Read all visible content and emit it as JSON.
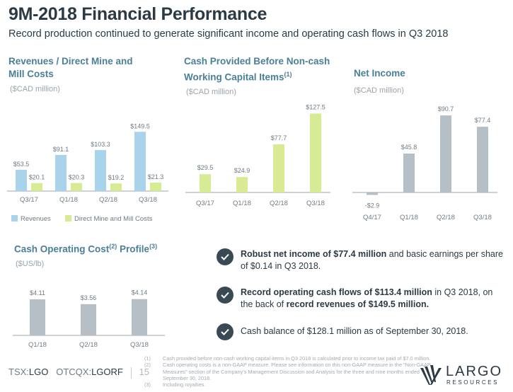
{
  "header": {
    "title": "9M-2018 Financial Performance",
    "subtitle": "Record production continued to generate significant income and operating cash flows in Q3 2018"
  },
  "colors": {
    "revenues": "#a9d3ea",
    "mine_costs": "#d6eb93",
    "cash_before": "#d6eb93",
    "net_income": "#b6bfc5",
    "cash_cost": "#b6bfc5",
    "title_blue": "#4a7f98"
  },
  "chart_data": [
    {
      "type": "bar",
      "title": "Revenues / Direct Mine and Mill Costs",
      "unit_label": "($CAD million)",
      "categories": [
        "Q3/17",
        "Q1/18",
        "Q2/18",
        "Q3/18"
      ],
      "series": [
        {
          "name": "Revenues",
          "values": [
            53.5,
            91.1,
            103.3,
            149.5
          ],
          "labels": [
            "$53.5",
            "$91.1",
            "$103.3",
            "$149.5"
          ]
        },
        {
          "name": "Direct Mine and Mill Costs",
          "values": [
            20.1,
            20.3,
            19.2,
            21.3
          ],
          "labels": [
            "$20.1",
            "$20.3",
            "$19.2",
            "$21.3"
          ]
        }
      ],
      "legend": "bottom"
    },
    {
      "type": "bar",
      "title": "Cash Provided Before Non-cash Working Capital Items",
      "title_sup": "(1)",
      "unit_label": "($CAD million)",
      "categories": [
        "Q3/17",
        "Q1/18",
        "Q2/18",
        "Q3/18"
      ],
      "values": [
        29.5,
        24.9,
        77.7,
        127.5
      ],
      "labels": [
        "$29.5",
        "$24.9",
        "$77.7",
        "$127.5"
      ]
    },
    {
      "type": "bar",
      "title": "Net Income",
      "unit_label": "($CAD million)",
      "categories": [
        "Q4/17",
        "Q1/18",
        "Q2/18",
        "Q3/18"
      ],
      "values": [
        -2.9,
        45.8,
        90.7,
        77.4
      ],
      "labels": [
        "-$2.9",
        "$45.8",
        "$90.7",
        "$77.4"
      ]
    },
    {
      "type": "bar",
      "title": "Cash Operating Cost",
      "title_sup1": "(2)",
      "title_mid": "Profile",
      "title_sup2": "(3)",
      "unit_label": "($US/lb)",
      "categories": [
        "Q1/18",
        "Q2/18",
        "Q3/18"
      ],
      "values": [
        4.11,
        3.56,
        4.14
      ],
      "labels": [
        "$4.11",
        "$3.56",
        "$4.14"
      ]
    }
  ],
  "bullets": [
    {
      "bold": "Robust net income of $77.4 million",
      "rest": " and basic earnings per share of $0.14 in Q3 2018."
    },
    {
      "bold": "Record operating cash flows of $113.4 million",
      "mid": " in Q3 2018, on the back of ",
      "bold2": "record revenues of $149.5 million."
    },
    {
      "plain": "Cash balance of $128.1 million as of September 30, 2018."
    }
  ],
  "footer": {
    "tsx_prefix": "TSX:",
    "tsx": "LGO",
    "otc_prefix": "OTCQX:",
    "otc": "LGORF",
    "page": "15",
    "footnotes": [
      {
        "num": "(1)",
        "text": "Cash provided before non-cash working capital items in Q3 2018 is calculated prior to income tax paid of $7.0 million."
      },
      {
        "num": "(2)",
        "text": "Cash operating costs is a non-GAAP measure. Please see information on this non-GAAP measure in the \"Non-GAAP Measures\" section of the Company's Management Discussion and Analysis for the three and nine months ended September 30, 2018."
      },
      {
        "num": "(3)",
        "text": "Including royalties."
      }
    ],
    "logo_main": "LARGO",
    "logo_sub": "RESOURCES"
  }
}
